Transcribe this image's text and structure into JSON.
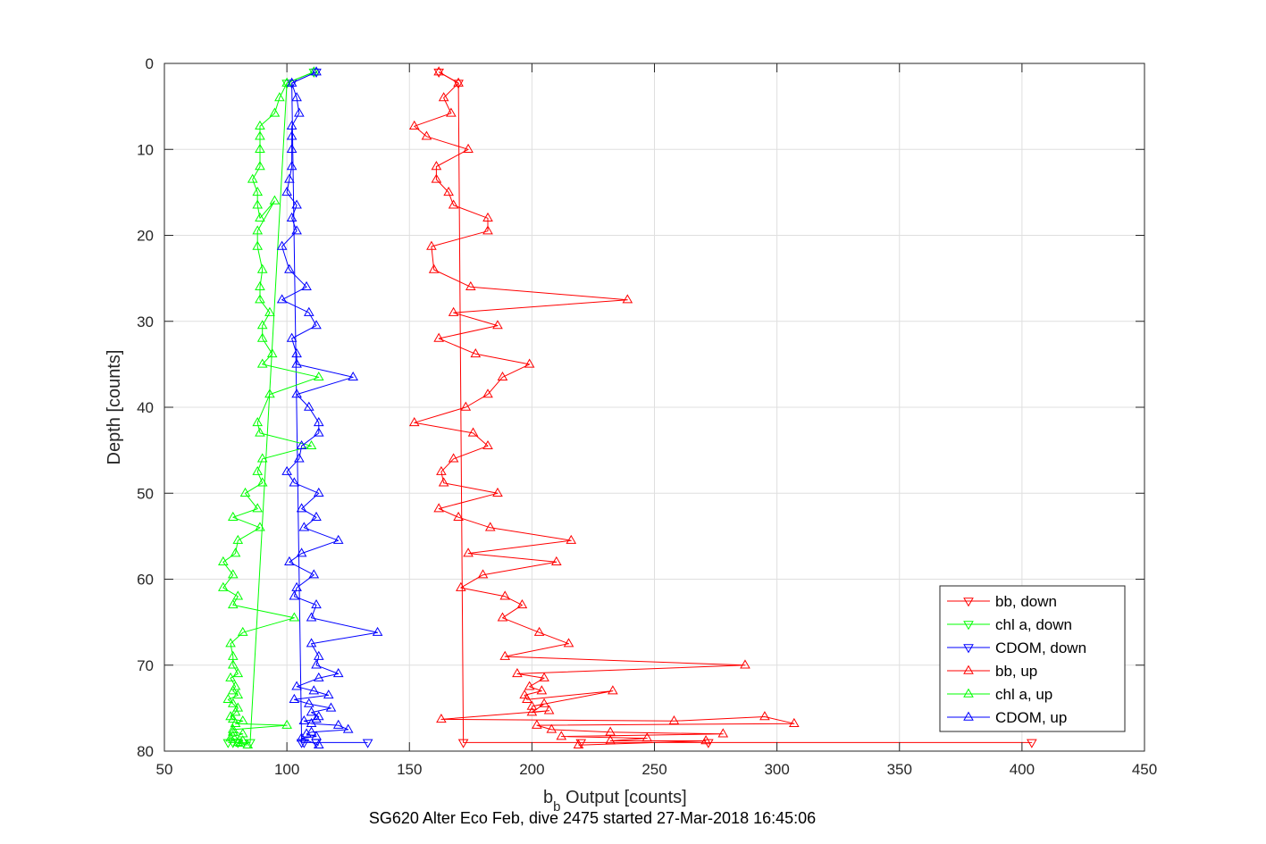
{
  "chart_data": {
    "type": "line",
    "xlabel_main": "b",
    "xlabel_sub": "b",
    "xlabel_rest": " Output [counts]",
    "ylabel": "Depth [counts]",
    "caption": "SG620 Alter Eco Feb, dive 2475 started 27-Mar-2018 16:45:06",
    "xlim": [
      50,
      450
    ],
    "ylim": [
      0,
      80
    ],
    "y_reversed": true,
    "grid": true,
    "xticks": [
      "50",
      "100",
      "150",
      "200",
      "250",
      "300",
      "350",
      "400",
      "450"
    ],
    "yticks": [
      "0",
      "10",
      "20",
      "30",
      "40",
      "50",
      "60",
      "70",
      "80"
    ],
    "legend_position": "bottom-right",
    "series": [
      {
        "name": "bb, down",
        "color": "#ff0000",
        "marker": "down",
        "x": [
          162,
          170,
          172,
          404,
          272,
          220
        ],
        "y": [
          1,
          2.3,
          79,
          79,
          79,
          79
        ]
      },
      {
        "name": "chl a, down",
        "color": "#00ff00",
        "marker": "down",
        "x": [
          111,
          100,
          85,
          78,
          80,
          76
        ],
        "y": [
          1,
          2.3,
          79,
          79,
          79,
          79
        ]
      },
      {
        "name": "CDOM, down",
        "color": "#0000ff",
        "marker": "down",
        "x": [
          112,
          102,
          106,
          112,
          107,
          133
        ],
        "y": [
          1,
          2.3,
          79,
          79,
          79,
          79
        ]
      },
      {
        "name": "bb, up",
        "color": "#ff0000",
        "marker": "up",
        "x": [
          162,
          170,
          164,
          167,
          152,
          157,
          174,
          161,
          161,
          166,
          168,
          182,
          182,
          159,
          160,
          175,
          239,
          168,
          186,
          162,
          177,
          199,
          188,
          182,
          173,
          152,
          176,
          182,
          168,
          163,
          164,
          186,
          162,
          170,
          183,
          216,
          174,
          210,
          180,
          171,
          189,
          196,
          188,
          203,
          215,
          189,
          287,
          194,
          205,
          199,
          204,
          197,
          198,
          233,
          200,
          205,
          200,
          207,
          163,
          258,
          295,
          307,
          202,
          208,
          232,
          278,
          212,
          247,
          232,
          271,
          219
        ],
        "y": [
          1,
          2.3,
          4,
          5.8,
          7.3,
          8.5,
          10,
          12,
          13.5,
          15,
          16.5,
          18,
          19.5,
          21.3,
          24,
          26,
          27.5,
          29,
          30.5,
          32,
          33.8,
          35,
          36.5,
          38.5,
          40,
          41.8,
          43,
          44.5,
          46,
          47.5,
          48.8,
          50,
          51.8,
          52.8,
          54,
          55.5,
          57,
          58,
          59.5,
          61,
          62,
          63,
          64.5,
          66.2,
          67.5,
          69,
          70,
          71,
          71.5,
          72.5,
          73,
          73.5,
          74,
          73,
          74.8,
          74.5,
          75.5,
          75.3,
          76.3,
          76.5,
          76,
          76.8,
          77,
          77.5,
          77.8,
          78,
          78.3,
          78.5,
          78.8,
          78.8,
          79.3
        ]
      },
      {
        "name": "chl a, up",
        "color": "#00ff00",
        "marker": "up",
        "x": [
          111,
          100,
          97,
          95,
          89,
          89,
          89,
          89,
          86,
          88,
          88,
          89,
          95,
          88,
          88,
          90,
          89,
          89,
          93,
          90,
          90,
          94,
          90,
          113,
          93,
          88,
          89,
          110,
          90,
          88,
          90,
          83,
          88,
          78,
          89,
          80,
          79,
          74,
          78,
          74,
          80,
          78,
          103,
          82,
          77,
          78,
          78,
          80,
          77,
          79,
          78,
          80,
          76,
          78,
          80,
          79,
          77,
          78,
          82,
          79,
          100,
          78,
          78,
          82,
          78,
          77,
          82,
          80,
          81,
          84
        ],
        "y": [
          1,
          2.3,
          4,
          5.8,
          7.3,
          8.5,
          10,
          12,
          13.5,
          15,
          16.5,
          18,
          16,
          19.5,
          21.3,
          24,
          26,
          27.5,
          29,
          30.5,
          32,
          33.8,
          35,
          36.5,
          38.5,
          41.8,
          43,
          44.5,
          46,
          47.5,
          48.8,
          50,
          51.8,
          52.8,
          54,
          55.5,
          57,
          58,
          59.5,
          61,
          62,
          63,
          64.5,
          66.2,
          67.5,
          69,
          70,
          71,
          71.5,
          72.5,
          73,
          73.5,
          74,
          74.5,
          75,
          75.5,
          76,
          76.3,
          76.5,
          76.8,
          77,
          77.5,
          77.8,
          78,
          78.3,
          78.5,
          78.8,
          79,
          79.1,
          79.3
        ]
      },
      {
        "name": "CDOM, up",
        "color": "#0000ff",
        "marker": "up",
        "x": [
          112,
          102,
          104,
          105,
          102,
          102,
          102,
          102,
          101,
          100,
          104,
          102,
          104,
          98,
          101,
          108,
          98,
          109,
          112,
          102,
          104,
          104,
          127,
          104,
          109,
          113,
          113,
          106,
          105,
          100,
          103,
          113,
          106,
          112,
          107,
          121,
          106,
          101,
          111,
          104,
          103,
          112,
          110,
          137,
          110,
          113,
          112,
          121,
          113,
          104,
          111,
          117,
          103,
          109,
          118,
          110,
          113,
          112,
          107,
          110,
          121,
          125,
          110,
          108,
          112,
          106,
          113
        ],
        "y": [
          1,
          2.3,
          4,
          5.8,
          7.3,
          8.5,
          10,
          12,
          13.5,
          15,
          16.5,
          18,
          19.5,
          21.3,
          24,
          26,
          27.5,
          29,
          30.5,
          32,
          33.8,
          35,
          36.5,
          38.5,
          40,
          41.8,
          43,
          44.5,
          46,
          47.5,
          48.8,
          50,
          51.8,
          52.8,
          54,
          55.5,
          57,
          58,
          59.5,
          61,
          62,
          63,
          64.5,
          66.2,
          67.5,
          69,
          70,
          71,
          71.5,
          72.5,
          73,
          73.5,
          74,
          74.5,
          75,
          75.5,
          76,
          76.3,
          76.5,
          76.8,
          77,
          77.5,
          77.8,
          78,
          78.3,
          78.5,
          79.3
        ]
      }
    ]
  }
}
